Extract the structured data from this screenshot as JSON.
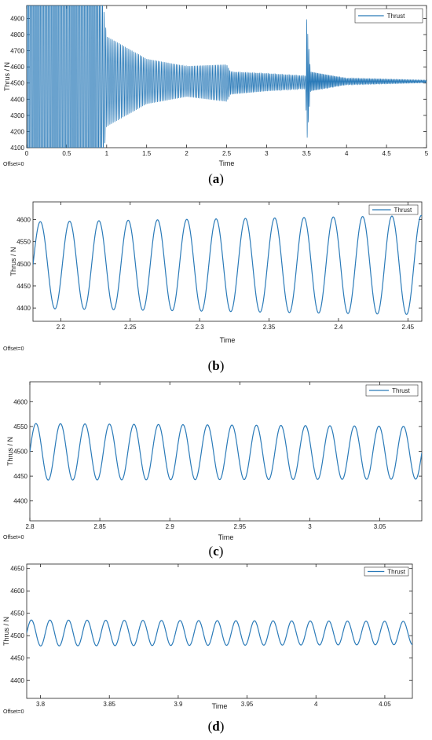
{
  "chart_data": [
    {
      "type": "line",
      "caption": "a",
      "xlabel": "Time",
      "ylabel": "Thrus / N",
      "offset_label": "Offset=0",
      "legend": "top-right",
      "grid": false,
      "color": "#2a7ab8",
      "xlim": [
        0,
        5
      ],
      "ylim": [
        4100,
        4980
      ],
      "xticks": [
        0,
        0.5,
        1,
        1.5,
        2,
        2.5,
        3,
        3.5,
        4,
        4.5,
        5
      ],
      "yticks": [
        4100,
        4200,
        4300,
        4400,
        4500,
        4600,
        4700,
        4800,
        4900
      ],
      "series": [
        {
          "name": "Thrust",
          "x": [
            0,
            0.75,
            1.0,
            1.5,
            2.0,
            2.5,
            2.55,
            3.0,
            3.49,
            3.5,
            3.55,
            4.0,
            5.0
          ],
          "y_center": [
            4510,
            4510,
            4510,
            4510,
            4510,
            4500,
            4500,
            4505,
            4505,
            4505,
            4510,
            4510,
            4510
          ],
          "y_amplitude": [
            1500,
            1500,
            280,
            140,
            95,
            115,
            70,
            55,
            40,
            400,
            60,
            20,
            8
          ]
        }
      ]
    },
    {
      "type": "line",
      "caption": "b",
      "xlabel": "Time",
      "ylabel": "Thrus / N",
      "offset_label": "Offset=0",
      "legend": "top-right",
      "grid": false,
      "color": "#2a7ab8",
      "xlim": [
        2.18,
        2.46
      ],
      "ylim": [
        4370,
        4640
      ],
      "xticks": [
        2.2,
        2.25,
        2.3,
        2.35,
        2.4,
        2.45
      ],
      "yticks": [
        4400,
        4450,
        4500,
        4550,
        4600
      ],
      "series": [
        {
          "name": "Thrust",
          "x": [
            2.18,
            2.46
          ],
          "y_center": [
            4497,
            4497
          ],
          "y_amplitude": [
            98,
            112
          ],
          "period": 0.0211
        }
      ]
    },
    {
      "type": "line",
      "caption": "c",
      "xlabel": "Time",
      "ylabel": "Thrus / N",
      "offset_label": "Offset=0",
      "legend": "top-right",
      "grid": false,
      "color": "#2a7ab8",
      "xlim": [
        2.8,
        3.08
      ],
      "ylim": [
        4360,
        4640
      ],
      "xticks": [
        2.8,
        2.85,
        2.9,
        2.95,
        3,
        3.05
      ],
      "yticks": [
        4400,
        4450,
        4500,
        4550,
        4600
      ],
      "series": [
        {
          "name": "Thrust",
          "x": [
            2.8,
            3.08
          ],
          "y_center": [
            4499,
            4497
          ],
          "y_amplitude": [
            57,
            53
          ],
          "period": 0.0175
        }
      ]
    },
    {
      "type": "line",
      "caption": "d",
      "xlabel": "Time",
      "ylabel": "Thrus / N",
      "offset_label": "Offset=0",
      "legend": "top-right",
      "grid": false,
      "color": "#2a7ab8",
      "xlim": [
        3.79,
        4.07
      ],
      "ylim": [
        4360,
        4660
      ],
      "xticks": [
        3.8,
        3.85,
        3.9,
        3.95,
        4,
        4.05
      ],
      "yticks": [
        4400,
        4450,
        4500,
        4550,
        4600,
        4650
      ],
      "series": [
        {
          "name": "Thrust",
          "x": [
            3.79,
            4.07
          ],
          "y_center": [
            4506,
            4506
          ],
          "y_amplitude": [
            29,
            26
          ],
          "period": 0.0135
        }
      ]
    }
  ]
}
